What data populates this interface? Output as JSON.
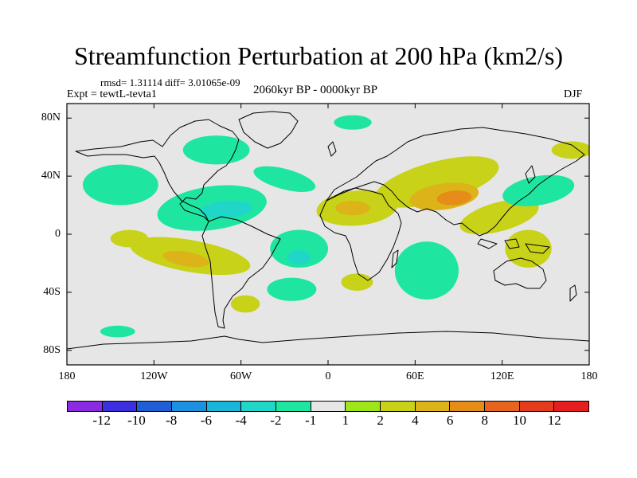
{
  "chart_data": {
    "type": "heatmap",
    "title": "Streamfunction Perturbation at 200 hPa (km2/s)",
    "stats_text": "rmsd= 1.31114  diff= 3.01065e-09",
    "left_label": "Expt = tewtL-tevta1",
    "center_label": "2060kyr BP - 0000kyr BP",
    "right_label": "DJF",
    "x_range": [
      -180,
      180
    ],
    "y_range": [
      -90,
      90
    ],
    "y_ticks": [
      {
        "label": "80N",
        "value": 80
      },
      {
        "label": "40N",
        "value": 40
      },
      {
        "label": "0",
        "value": 0
      },
      {
        "label": "40S",
        "value": -40
      },
      {
        "label": "80S",
        "value": -80
      }
    ],
    "x_ticks": [
      {
        "label": "180",
        "value": -180
      },
      {
        "label": "120W",
        "value": -120
      },
      {
        "label": "60W",
        "value": -60
      },
      {
        "label": "0",
        "value": 0
      },
      {
        "label": "60E",
        "value": 60
      },
      {
        "label": "120E",
        "value": 120
      },
      {
        "label": "180",
        "value": 180
      }
    ],
    "colorbar": {
      "levels": [
        "-12",
        "-10",
        "-8",
        "-6",
        "-4",
        "-2",
        "-1",
        "1",
        "2",
        "4",
        "6",
        "8",
        "10",
        "12"
      ],
      "colors": [
        "#8a2be2",
        "#3b2fe0",
        "#1f5fd6",
        "#1e90e0",
        "#1ab6d9",
        "#1fd6c8",
        "#1ee6a0",
        "#e6e6e6",
        "#9ee619",
        "#c8d219",
        "#dcb419",
        "#e68c19",
        "#e6641e",
        "#e63c1e",
        "#e61e1e"
      ]
    },
    "fields": [
      {
        "sign": "positive",
        "value": 2,
        "lon": 75,
        "lat": 36,
        "rx": 44,
        "ry": 14,
        "rot": -15
      },
      {
        "sign": "positive",
        "value": 4,
        "lon": 80,
        "lat": 26,
        "rx": 24,
        "ry": 9,
        "rot": -8
      },
      {
        "sign": "positive",
        "value": 6,
        "lon": 87,
        "lat": 25,
        "rx": 12,
        "ry": 5,
        "rot": -5
      },
      {
        "sign": "positive",
        "value": 2,
        "lon": 118,
        "lat": 12,
        "rx": 28,
        "ry": 10,
        "rot": -15
      },
      {
        "sign": "positive",
        "value": 2,
        "lon": 138,
        "lat": -10,
        "rx": 16,
        "ry": 13,
        "rot": 0
      },
      {
        "sign": "positive",
        "value": 2,
        "lon": 20,
        "lat": 18,
        "rx": 28,
        "ry": 12,
        "rot": -5
      },
      {
        "sign": "positive",
        "value": 4,
        "lon": 17,
        "lat": 18,
        "rx": 12,
        "ry": 5,
        "rot": 0
      },
      {
        "sign": "positive",
        "value": 2,
        "lon": -95,
        "lat": -15,
        "rx": 42,
        "ry": 11,
        "rot": 10
      },
      {
        "sign": "positive",
        "value": 4,
        "lon": -98,
        "lat": -17,
        "rx": 16,
        "ry": 5,
        "rot": 10
      },
      {
        "sign": "positive",
        "value": 2,
        "lon": -137,
        "lat": -3,
        "rx": 13,
        "ry": 6,
        "rot": 0
      },
      {
        "sign": "positive",
        "value": 2,
        "lon": 20,
        "lat": -33,
        "rx": 11,
        "ry": 6,
        "rot": 0
      },
      {
        "sign": "positive",
        "value": 2,
        "lon": -57,
        "lat": -48,
        "rx": 10,
        "ry": 6,
        "rot": 0
      },
      {
        "sign": "positive",
        "value": 2,
        "lon": 168,
        "lat": 58,
        "rx": 14,
        "ry": 6,
        "rot": 0
      },
      {
        "sign": "negative",
        "value": -2,
        "lon": -80,
        "lat": 18,
        "rx": 38,
        "ry": 15,
        "rot": -8
      },
      {
        "sign": "negative",
        "value": -4,
        "lon": -70,
        "lat": 17,
        "rx": 18,
        "ry": 6,
        "rot": -5
      },
      {
        "sign": "negative",
        "value": -2,
        "lon": -77,
        "lat": 58,
        "rx": 23,
        "ry": 10,
        "rot": 0
      },
      {
        "sign": "negative",
        "value": -2,
        "lon": -143,
        "lat": 34,
        "rx": 26,
        "ry": 14,
        "rot": 0
      },
      {
        "sign": "negative",
        "value": -2,
        "lon": -30,
        "lat": 38,
        "rx": 22,
        "ry": 7,
        "rot": 15
      },
      {
        "sign": "negative",
        "value": -2,
        "lon": -20,
        "lat": -10,
        "rx": 20,
        "ry": 13,
        "rot": 0
      },
      {
        "sign": "negative",
        "value": -4,
        "lon": -20,
        "lat": -16,
        "rx": 8,
        "ry": 5,
        "rot": 0
      },
      {
        "sign": "negative",
        "value": -2,
        "lon": -25,
        "lat": -38,
        "rx": 17,
        "ry": 8,
        "rot": 0
      },
      {
        "sign": "negative",
        "value": -2,
        "lon": 68,
        "lat": -25,
        "rx": 22,
        "ry": 20,
        "rot": 0
      },
      {
        "sign": "negative",
        "value": -2,
        "lon": 145,
        "lat": 30,
        "rx": 25,
        "ry": 10,
        "rot": -10
      },
      {
        "sign": "negative",
        "value": -2,
        "lon": 17,
        "lat": 77,
        "rx": 13,
        "ry": 5,
        "rot": 0
      },
      {
        "sign": "negative",
        "value": -2,
        "lon": -145,
        "lat": -67,
        "rx": 12,
        "ry": 4,
        "rot": 0
      }
    ]
  }
}
